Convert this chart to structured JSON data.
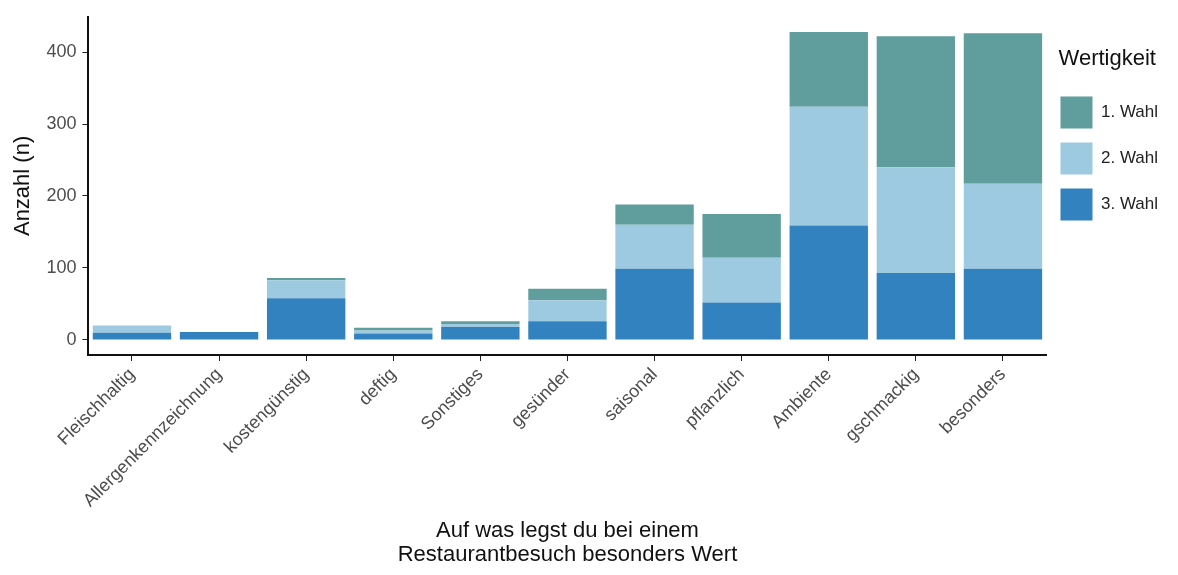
{
  "chart_data": {
    "type": "bar",
    "stacked": true,
    "xlabel": "Auf was legst du bei einem Restaurantbesuch besonders Wert",
    "ylabel": "Anzahl (n)",
    "legend_title": "Wertigkeit",
    "legend": "right",
    "categories": [
      "Fleischhaltig",
      "Allergenkennzeichnung",
      "kostengünstig",
      "deftig",
      "Sonstiges",
      "gesünder",
      "saisonal",
      "pflanzlich",
      "Ambiente",
      "gschmackig",
      "besonders"
    ],
    "series": [
      {
        "name": "3. Wahl",
        "color": "#3282bf",
        "values": [
          10,
          11,
          58,
          9,
          18,
          26,
          99,
          52,
          159,
          93,
          99
        ]
      },
      {
        "name": "2. Wahl",
        "color": "#9ecae1",
        "values": [
          10,
          0,
          25,
          4,
          4,
          29,
          61,
          62,
          165,
          147,
          118
        ]
      },
      {
        "name": "1. Wahl",
        "color": "#5f9e9c",
        "values": [
          0,
          0,
          3,
          4,
          4,
          16,
          28,
          61,
          104,
          182,
          209
        ]
      }
    ],
    "ylim": [
      -21,
      449
    ],
    "yticks": [
      0,
      100,
      200,
      300,
      400
    ],
    "grid": false
  }
}
